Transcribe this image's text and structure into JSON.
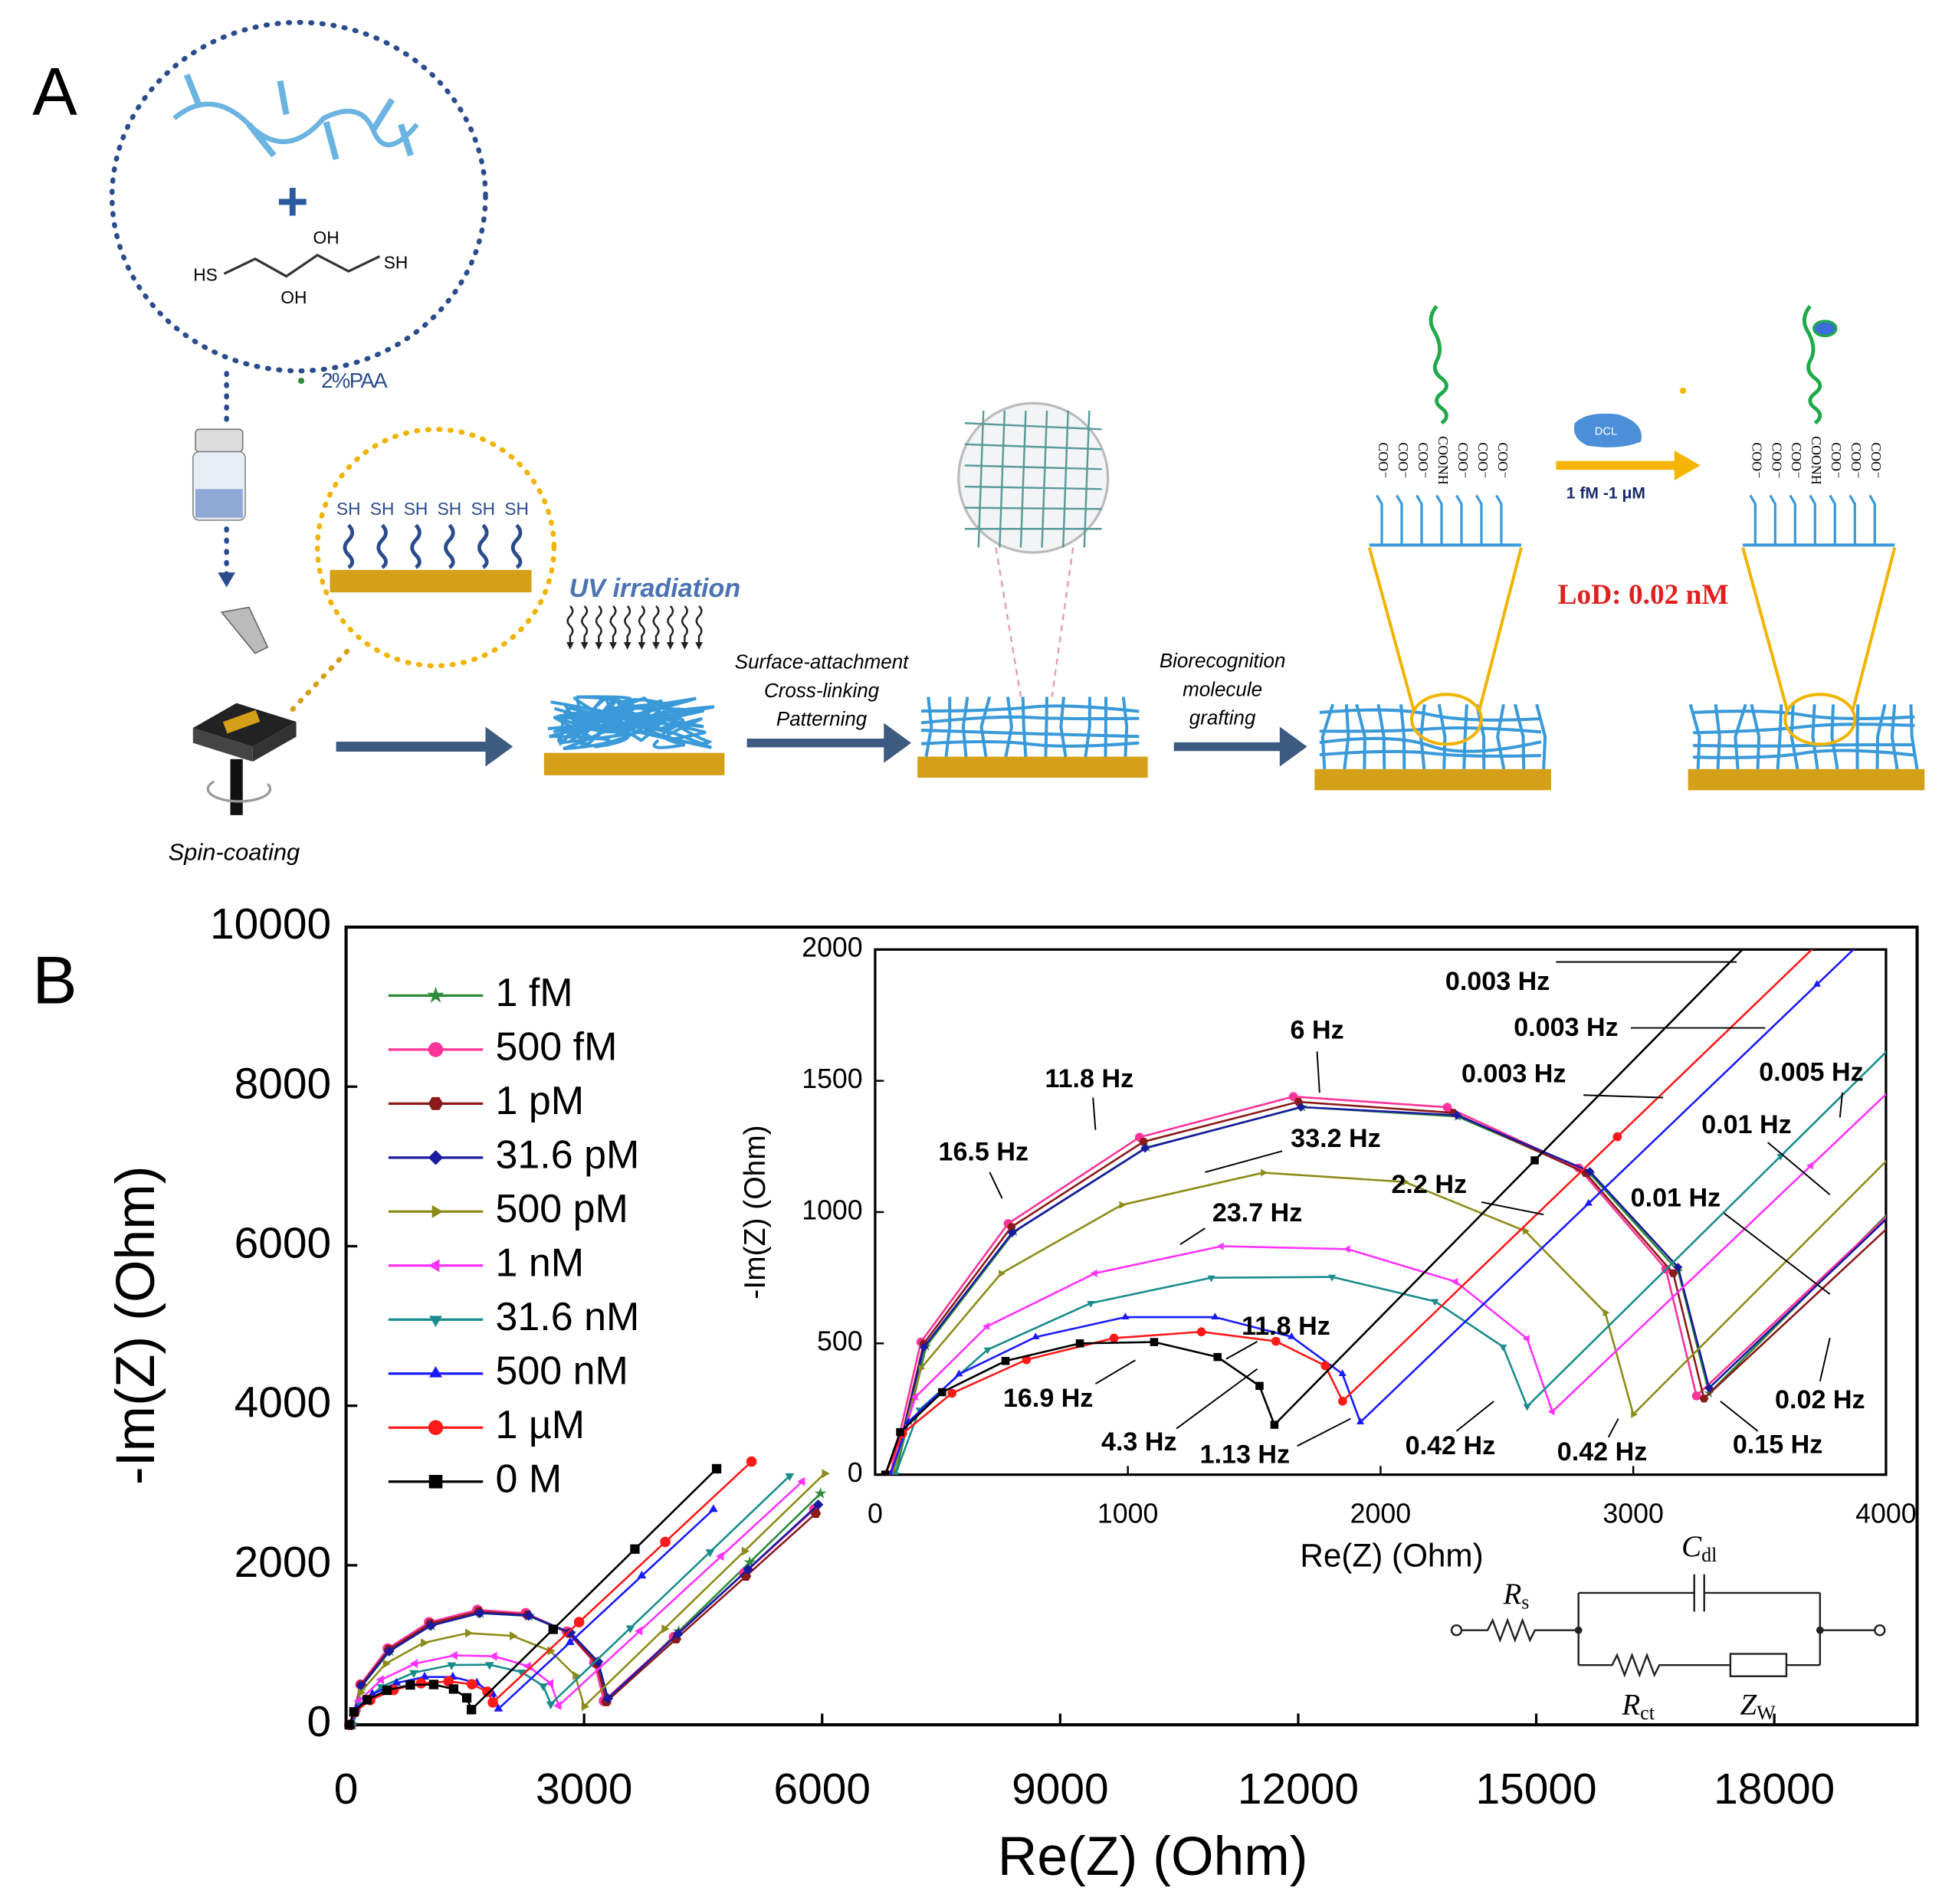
{
  "panel_a": {
    "label": "A",
    "paa": "2%PAA",
    "hs": "HS",
    "sh": "SH",
    "oh": "OH",
    "thiol": "SH",
    "uv": "UV irradiation",
    "step2": [
      "Surface-attachment",
      "Cross-linking",
      "Patterning"
    ],
    "step3": [
      "Biorecognition",
      "molecule",
      "grafting"
    ],
    "spin": "Spin-coating",
    "dcl": "DCL",
    "range": "1 fM -1 μM",
    "lod": "LoD: 0.02 nM",
    "chains": [
      "COO⁻",
      "COO⁻",
      "COO⁻",
      "COONH",
      "COO⁻",
      "COO⁻",
      "COO⁻"
    ]
  },
  "panel_b": {
    "label": "B"
  },
  "chart_data": {
    "type": "line",
    "xlabel": "Re(Z) (Ohm)",
    "ylabel": "-Im(Z) (Ohm)",
    "xlim": [
      0,
      19800
    ],
    "ylim": [
      0,
      10000
    ],
    "xticks": [
      0,
      3000,
      6000,
      9000,
      12000,
      15000,
      18000
    ],
    "yticks": [
      0,
      2000,
      4000,
      6000,
      8000,
      10000
    ],
    "legend": "upper left",
    "series": [
      {
        "name": "1 fM",
        "color": "#2e8b3a",
        "marker": "star",
        "x": [
          80,
          202,
          550,
          1075,
          1690,
          2305,
          2830,
          3178,
          3300,
          4193,
          5087,
          5980
        ],
        "y": [
          0,
          489,
          925,
          1246,
          1400,
          1364,
          1145,
          775,
          310,
          1173,
          2037,
          2900
        ]
      },
      {
        "name": "500 fM",
        "color": "#ff3399",
        "marker": "circle",
        "x": [
          60,
          181,
          526,
          1046,
          1655,
          2264,
          2784,
          3129,
          3250,
          4133,
          5017,
          5900
        ],
        "y": [
          0,
          505,
          956,
          1285,
          1440,
          1399,
          1168,
          783,
          300,
          1100,
          1900,
          2700
        ]
      },
      {
        "name": "1 pM",
        "color": "#8b1a1a",
        "marker": "hexagon",
        "x": [
          70,
          192,
          539,
          1062,
          1675,
          2288,
          2811,
          3158,
          3280,
          4160,
          5040,
          5920
        ],
        "y": [
          0,
          499,
          943,
          1268,
          1420,
          1378,
          1149,
          767,
          290,
          1077,
          1863,
          2650
        ]
      },
      {
        "name": "31.6 pM",
        "color": "#1a1aa0",
        "marker": "diamond",
        "x": [
          70,
          193,
          542,
          1068,
          1685,
          2302,
          2828,
          3177,
          3300,
          4183,
          5067,
          5950
        ],
        "y": [
          0,
          486,
          921,
          1243,
          1400,
          1369,
          1155,
          790,
          330,
          1140,
          1950,
          2760
        ]
      },
      {
        "name": "500 pM",
        "color": "#8c8c1a",
        "marker": "right",
        "x": [
          70,
          181,
          498,
          975,
          1535,
          2095,
          2572,
          2889,
          3000,
          4010,
          5020,
          6030
        ],
        "y": [
          0,
          405,
          766,
          1027,
          1150,
          1115,
          928,
          617,
          230,
          1203,
          2177,
          3150
        ]
      },
      {
        "name": "1 nM",
        "color": "#ff33ff",
        "marker": "left",
        "x": [
          60,
          160,
          443,
          870,
          1370,
          1870,
          2297,
          2580,
          2680,
          3703,
          4727,
          5750
        ],
        "y": [
          0,
          296,
          565,
          767,
          870,
          859,
          735,
          518,
          240,
          1177,
          2113,
          3050
        ]
      },
      {
        "name": "31.6 nM",
        "color": "#1a8c8c",
        "marker": "down",
        "x": [
          80,
          175,
          445,
          853,
          1330,
          1808,
          2215,
          2485,
          2580,
          3583,
          4587,
          5590
        ],
        "y": [
          0,
          247,
          476,
          653,
          750,
          753,
          660,
          487,
          260,
          1213,
          2167,
          3120
        ]
      },
      {
        "name": "500 nM",
        "color": "#1a1aff",
        "marker": "up",
        "x": [
          60,
          131,
          332,
          635,
          990,
          1345,
          1648,
          1849,
          1920,
          2823,
          3727,
          4630
        ],
        "y": [
          0,
          200,
          383,
          524,
          600,
          600,
          525,
          384,
          200,
          1033,
          1867,
          2700
        ]
      },
      {
        "name": "1 µM",
        "color": "#ff1a1a",
        "marker": "circle",
        "x": [
          40,
          109,
          304,
          599,
          945,
          1291,
          1586,
          1781,
          1850,
          2937,
          4023,
          5110
        ],
        "y": [
          0,
          157,
          310,
          438,
          520,
          544,
          508,
          415,
          280,
          1287,
          2293,
          3300
        ]
      },
      {
        "name": "0 M",
        "color": "#000000",
        "marker": "square",
        "x": [
          40,
          99,
          265,
          516,
          810,
          1104,
          1355,
          1521,
          1580,
          2610,
          3640,
          4670
        ],
        "y": [
          0,
          162,
          314,
          433,
          500,
          505,
          448,
          338,
          190,
          1197,
          2203,
          3210
        ]
      }
    ],
    "inset": {
      "xlabel": "Re(Z) (Ohm)",
      "ylabel": "-Im(Z) (Ohm)",
      "xlim": [
        0,
        4000
      ],
      "ylim": [
        0,
        2000
      ],
      "xticks": [
        0,
        1000,
        2000,
        3000,
        4000
      ],
      "yticks": [
        0,
        500,
        1000,
        1500,
        2000
      ],
      "annotations": [
        "0.003 Hz",
        "0.003 Hz",
        "0.003 Hz",
        "0.005 Hz",
        "0.01 Hz",
        "0.01 Hz",
        "6 Hz",
        "11.8 Hz",
        "16.5 Hz",
        "33.2 Hz",
        "2.2 Hz",
        "23.7 Hz",
        "11.8 Hz",
        "16.9 Hz",
        "4.3 Hz",
        "1.13 Hz",
        "0.42 Hz",
        "0.42 Hz",
        "0.15 Hz",
        "0.02 Hz"
      ]
    }
  },
  "circuit": {
    "rs": {
      "main": "R",
      "sub": "s"
    },
    "cdl": {
      "main": "C",
      "sub": "dl"
    },
    "rct": {
      "main": "R",
      "sub": "ct"
    },
    "zw": {
      "main": "Z",
      "sub": "W"
    }
  }
}
